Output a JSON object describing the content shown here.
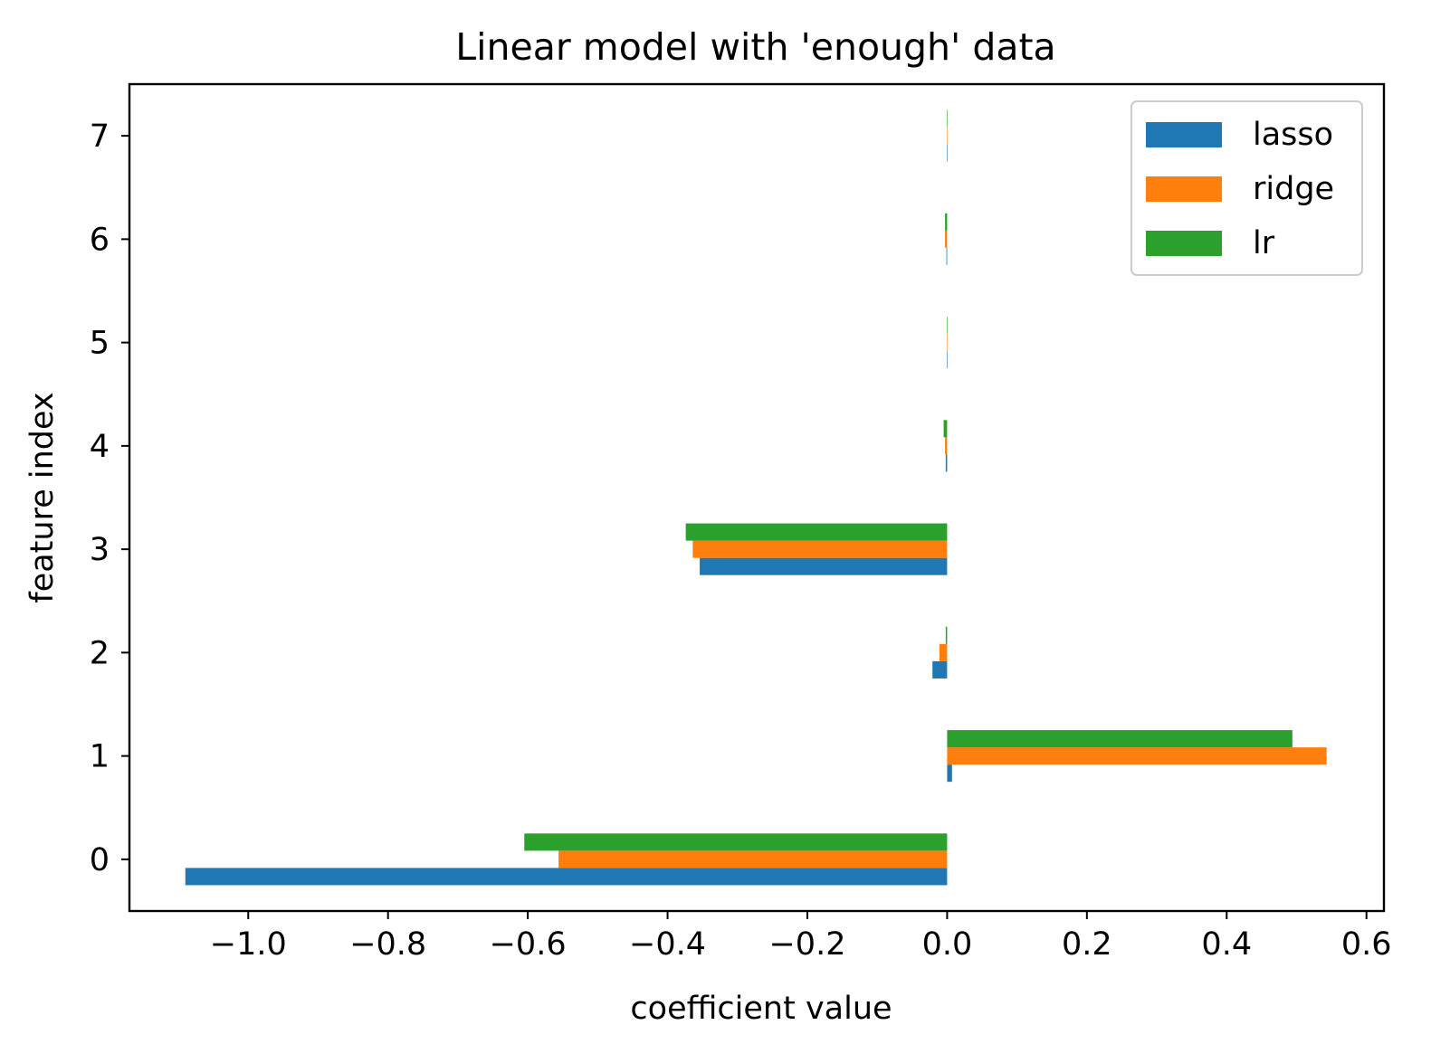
{
  "chart_data": {
    "type": "bar",
    "orientation": "horizontal",
    "title": "Linear model with 'enough' data",
    "xlabel": "coefficient value",
    "ylabel": "feature index",
    "categories": [
      0,
      1,
      2,
      3,
      4,
      5,
      6,
      7
    ],
    "xlim": [
      -1.17,
      0.625
    ],
    "ylim": [
      -0.5,
      7.5
    ],
    "x_ticks": [
      -1.0,
      -0.8,
      -0.6,
      -0.4,
      -0.2,
      0.0,
      0.2,
      0.4,
      0.6
    ],
    "x_tick_labels": [
      "−1.0",
      "−0.8",
      "−0.6",
      "−0.4",
      "−0.2",
      "0.0",
      "0.2",
      "0.4",
      "0.6"
    ],
    "y_ticks": [
      0,
      1,
      2,
      3,
      4,
      5,
      6,
      7
    ],
    "y_tick_labels": [
      "0",
      "1",
      "2",
      "3",
      "4",
      "5",
      "6",
      "7"
    ],
    "grid": false,
    "legend_position": "top-right",
    "series": [
      {
        "name": "lasso",
        "color": "#1f77b4",
        "values": [
          -1.09,
          0.007,
          -0.021,
          -0.354,
          -0.002,
          0.0,
          -0.001,
          0.0
        ]
      },
      {
        "name": "ridge",
        "color": "#ff7f0e",
        "values": [
          -0.556,
          0.543,
          -0.011,
          -0.364,
          -0.003,
          0.0,
          -0.003,
          0.0
        ]
      },
      {
        "name": "lr",
        "color": "#2ca02c",
        "values": [
          -0.605,
          0.494,
          -0.002,
          -0.374,
          -0.005,
          0.0,
          -0.003,
          0.0
        ]
      }
    ]
  }
}
